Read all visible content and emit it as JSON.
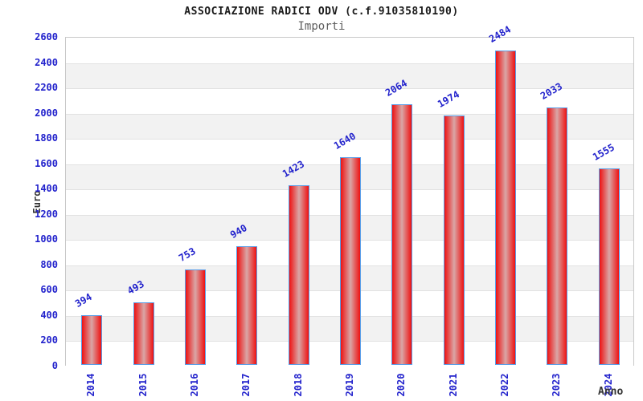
{
  "chart_data": {
    "type": "bar",
    "title": "ASSOCIAZIONE RADICI ODV (c.f.91035810190)",
    "subtitle": "Importi",
    "xlabel": "Anno",
    "ylabel": "Euro",
    "categories": [
      "2014",
      "2015",
      "2016",
      "2017",
      "2018",
      "2019",
      "2020",
      "2021",
      "2022",
      "2023",
      "2024"
    ],
    "values": [
      394,
      493,
      753,
      940,
      1423,
      1640,
      2064,
      1974,
      2484,
      2033,
      1555
    ],
    "ylim": [
      0,
      2600
    ],
    "ytick_step": 200,
    "grid": true,
    "legend": "none",
    "colors": {
      "bar_edge_red": "#ee1212",
      "bar_mid_light": "#d9a6a6",
      "bar_border_blue": "#5a9ee8",
      "axis_text_blue": "#2222cc",
      "title_text": "#1a1a1a",
      "subtitle_text": "#5f5f5f",
      "band_gray": "#f2f2f2",
      "band_white": "#ffffff",
      "gridline_gray": "#e2e2e2",
      "plot_border_gray": "#c9c9c9",
      "axis_title_gray": "#333333"
    }
  }
}
